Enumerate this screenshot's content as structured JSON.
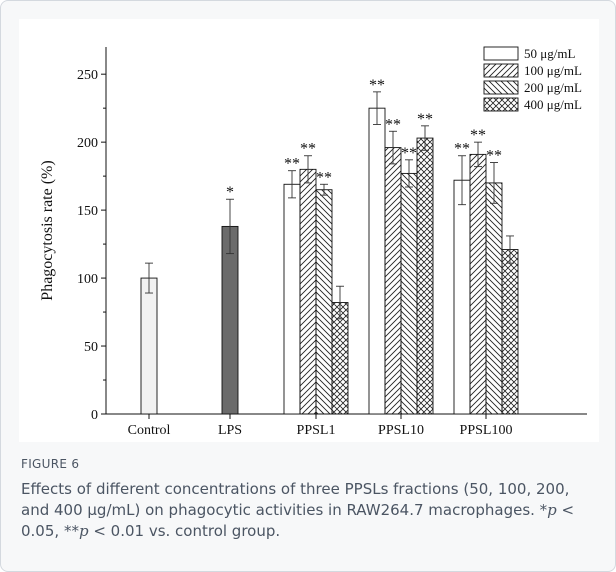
{
  "chart_data": {
    "type": "bar",
    "ylabel": "Phagocytosis rate (%)",
    "ylim": [
      0,
      270
    ],
    "yticks": [
      "0",
      "50",
      "100",
      "150",
      "200",
      "250"
    ],
    "ytick_values": [
      0,
      50,
      100,
      150,
      200,
      250
    ],
    "groups": [
      {
        "label": "Control",
        "bars": [
          {
            "series": "Control",
            "value": 100,
            "error": 11,
            "sig": ""
          }
        ]
      },
      {
        "label": "LPS",
        "bars": [
          {
            "series": "LPS",
            "value": 138,
            "error": 20,
            "sig": "*"
          }
        ]
      },
      {
        "label": "PPSL1",
        "bars": [
          {
            "series": "50 μg/mL",
            "value": 169,
            "error": 10,
            "sig": "**"
          },
          {
            "series": "100 μg/mL",
            "value": 180,
            "error": 10,
            "sig": "**"
          },
          {
            "series": "200 μg/mL",
            "value": 165,
            "error": 4,
            "sig": "**"
          },
          {
            "series": "400 μg/mL",
            "value": 82,
            "error": 12,
            "sig": ""
          }
        ]
      },
      {
        "label": "PPSL10",
        "bars": [
          {
            "series": "50 μg/mL",
            "value": 225,
            "error": 12,
            "sig": "**"
          },
          {
            "series": "100 μg/mL",
            "value": 196,
            "error": 12,
            "sig": "**"
          },
          {
            "series": "200 μg/mL",
            "value": 177,
            "error": 10,
            "sig": "**"
          },
          {
            "series": "400 μg/mL",
            "value": 203,
            "error": 9,
            "sig": "**"
          }
        ]
      },
      {
        "label": "PPSL100",
        "bars": [
          {
            "series": "50 μg/mL",
            "value": 172,
            "error": 18,
            "sig": "**"
          },
          {
            "series": "100 μg/mL",
            "value": 191,
            "error": 9,
            "sig": "**"
          },
          {
            "series": "200 μg/mL",
            "value": 170,
            "error": 15,
            "sig": "**"
          },
          {
            "series": "400 μg/mL",
            "value": 121,
            "error": 10,
            "sig": ""
          }
        ]
      }
    ],
    "legend": {
      "placement": "top-right",
      "entries": [
        "50 μg/mL",
        "100 μg/mL",
        "200 μg/mL",
        "400 μg/mL"
      ]
    },
    "series_styles": {
      "Control": {
        "fill": "#f2f2f2",
        "pattern": "none"
      },
      "LPS": {
        "fill": "#6b6b6b",
        "pattern": "none"
      },
      "50 μg/mL": {
        "fill": "#ffffff",
        "pattern": "none"
      },
      "100 μg/mL": {
        "fill": "#ffffff",
        "pattern": "diag-forward"
      },
      "200 μg/mL": {
        "fill": "#ffffff",
        "pattern": "diag-back"
      },
      "400 μg/mL": {
        "fill": "#ffffff",
        "pattern": "crosshatch"
      }
    }
  },
  "figure": {
    "label": "FIGURE 6",
    "caption_main": "Effects of different concentrations of three PPSLs fractions (50, 100, 200, and 400 μg/mL) on phagocytic activities in RAW264.7 macrophages. ",
    "caption_sig1_mark": "*",
    "caption_p1": "p",
    "caption_sig1_rest": " < 0.05, ",
    "caption_sig2_mark": "**",
    "caption_p2": "p",
    "caption_sig2_rest": " < 0.01 vs. control group."
  }
}
